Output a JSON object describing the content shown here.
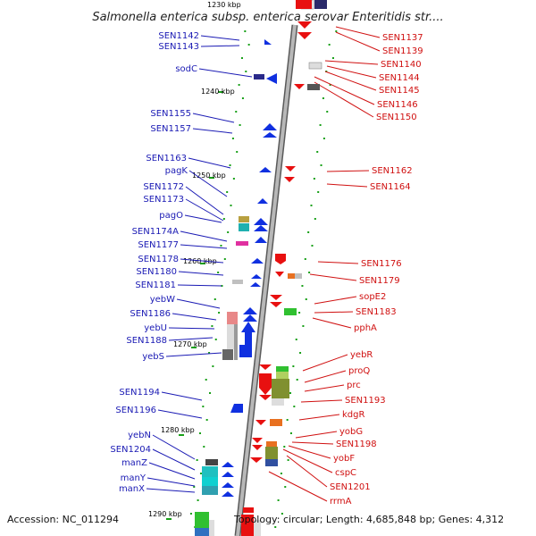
{
  "title": "Salmonella enterica subsp. enterica serovar Enteritidis str....",
  "accession": "Accession: NC_011294",
  "topology": "Topology: circular; Length: 4,685,848 bp; Genes: 4,312",
  "colors": {
    "forward_gene": "#1030e0",
    "reverse_gene": "#e81010",
    "left_label": "#1a1ab4",
    "right_label": "#d01010",
    "backbone": "#8a8a8a",
    "tick": "#18a018"
  },
  "kbp_ticks": [
    "1230 kbp",
    "1240 kbp",
    "1250 kbp",
    "1260 kbp",
    "1270 kbp",
    "1280 kbp",
    "1290 kbp"
  ],
  "left_genes": [
    "SEN1142",
    "SEN1143",
    "sodC",
    "SEN1155",
    "SEN1157",
    "SEN1163",
    "pagK",
    "SEN1172",
    "SEN1173",
    "pagO",
    "SEN1174A",
    "SEN1177",
    "SEN1178",
    "SEN1180",
    "SEN1181",
    "yebW",
    "SEN1186",
    "yebU",
    "SEN1188",
    "yebS",
    "SEN1194",
    "SEN1196",
    "yebN",
    "SEN1204",
    "manZ",
    "manY",
    "manX"
  ],
  "right_genes": [
    "SEN1137",
    "SEN1139",
    "SEN1140",
    "SEN1144",
    "SEN1145",
    "SEN1146",
    "SEN1150",
    "SEN1162",
    "SEN1164",
    "SEN1176",
    "SEN1179",
    "sopE2",
    "SEN1183",
    "pphA",
    "yebR",
    "proQ",
    "prc",
    "SEN1193",
    "kdgR",
    "yobG",
    "SEN1198",
    "yobF",
    "cspC",
    "SEN1201",
    "rrmA"
  ]
}
